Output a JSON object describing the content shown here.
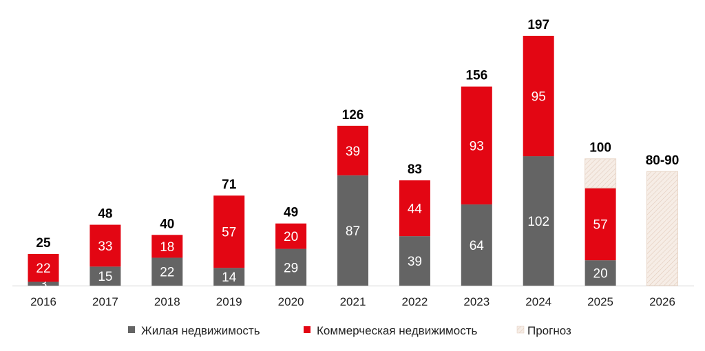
{
  "chart_data": {
    "type": "bar",
    "stacked": true,
    "categories": [
      "2016",
      "2017",
      "2018",
      "2019",
      "2020",
      "2021",
      "2022",
      "2023",
      "2024",
      "2025",
      "2026"
    ],
    "series": [
      {
        "name": "Жилая недвижимость",
        "color": "#646464",
        "values": [
          3,
          15,
          22,
          14,
          29,
          87,
          39,
          64,
          102,
          20,
          null
        ]
      },
      {
        "name": "Коммерческая недвижимость",
        "color": "#e30613",
        "values": [
          22,
          33,
          18,
          57,
          20,
          39,
          44,
          93,
          95,
          57,
          null
        ]
      },
      {
        "name": "Прогноз",
        "color": "#f3e6dc",
        "values": [
          null,
          null,
          null,
          null,
          null,
          null,
          null,
          null,
          null,
          23,
          90
        ]
      }
    ],
    "totals": [
      "25",
      "48",
      "40",
      "71",
      "49",
      "126",
      "83",
      "156",
      "197",
      "100",
      "80-90"
    ],
    "ylim": [
      0,
      200
    ],
    "grid": false,
    "legend_position": "bottom"
  }
}
